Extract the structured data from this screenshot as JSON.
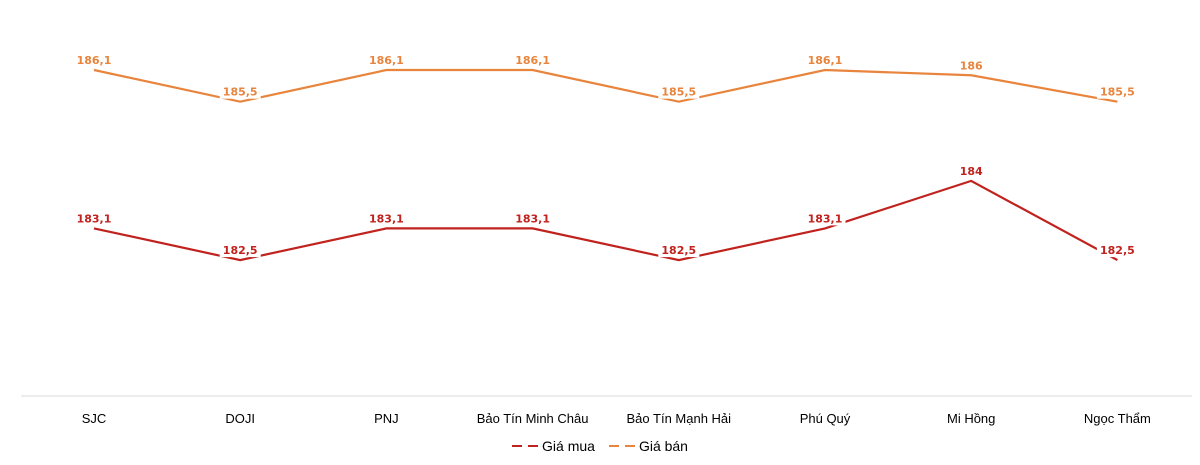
{
  "chart_data": {
    "type": "line",
    "title": "",
    "xlabel": "",
    "ylabel": "",
    "categories": [
      "SJC",
      "DOJI",
      "PNJ",
      "Bảo Tín Minh Châu",
      "Bảo Tín Mạnh Hải",
      "Phú Quý",
      "Mi Hồng",
      "Ngọc Thẩm"
    ],
    "series": [
      {
        "name": "Giá mua",
        "color": "#C0221E",
        "values": [
          183.1,
          182.5,
          183.1,
          183.1,
          182.5,
          183.1,
          184,
          182.5
        ],
        "labels": [
          "183,1",
          "182,5",
          "183,1",
          "183,1",
          "182,5",
          "183,1",
          "184",
          "182,5"
        ]
      },
      {
        "name": "Giá bán",
        "color": "#E8843C",
        "values": [
          186.1,
          185.5,
          186.1,
          186.1,
          185.5,
          186.1,
          186,
          185.5
        ],
        "labels": [
          "186,1",
          "185,5",
          "186,1",
          "186,1",
          "185,5",
          "186,1",
          "186",
          "185,5"
        ]
      }
    ],
    "grid": false,
    "legend_position": "bottom",
    "data_labels": true
  },
  "legend": {
    "buy_label": "Giá mua",
    "sell_label": "Giá bán"
  }
}
